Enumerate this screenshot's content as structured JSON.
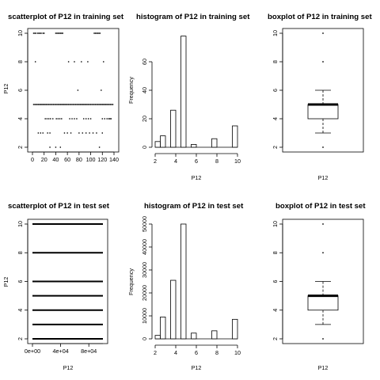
{
  "chart_data": [
    {
      "type": "scatter",
      "title": "scatterplot of P12 in training set",
      "xlabel": "",
      "ylabel": "P12",
      "xlim": [
        0,
        140
      ],
      "ylim": [
        2,
        10
      ],
      "xticks": [
        0,
        20,
        40,
        60,
        80,
        100,
        120,
        140
      ],
      "xtick_labels": [
        "0",
        "20",
        "40",
        "60",
        "80",
        "100",
        "120",
        "140"
      ],
      "yticks": [
        2,
        4,
        6,
        8,
        10
      ],
      "points": [
        [
          2,
          10
        ],
        [
          4,
          10
        ],
        [
          6,
          10
        ],
        [
          9,
          10
        ],
        [
          11,
          10
        ],
        [
          13,
          10
        ],
        [
          15,
          10
        ],
        [
          18,
          10
        ],
        [
          20,
          10
        ],
        [
          40,
          10
        ],
        [
          42,
          10
        ],
        [
          44,
          10
        ],
        [
          46,
          10
        ],
        [
          48,
          10
        ],
        [
          50,
          10
        ],
        [
          52,
          10
        ],
        [
          106,
          10
        ],
        [
          108,
          10
        ],
        [
          110,
          10
        ],
        [
          112,
          10
        ],
        [
          114,
          10
        ],
        [
          116,
          10
        ],
        [
          5,
          8
        ],
        [
          62,
          8
        ],
        [
          72,
          8
        ],
        [
          84,
          8
        ],
        [
          95,
          8
        ],
        [
          122,
          8
        ],
        [
          78,
          6
        ],
        [
          118,
          6
        ],
        [
          2,
          5
        ],
        [
          4,
          5
        ],
        [
          6,
          5
        ],
        [
          8,
          5
        ],
        [
          10,
          5
        ],
        [
          12,
          5
        ],
        [
          14,
          5
        ],
        [
          16,
          5
        ],
        [
          18,
          5
        ],
        [
          20,
          5
        ],
        [
          22,
          5
        ],
        [
          24,
          5
        ],
        [
          26,
          5
        ],
        [
          28,
          5
        ],
        [
          30,
          5
        ],
        [
          32,
          5
        ],
        [
          34,
          5
        ],
        [
          36,
          5
        ],
        [
          38,
          5
        ],
        [
          40,
          5
        ],
        [
          42,
          5
        ],
        [
          44,
          5
        ],
        [
          46,
          5
        ],
        [
          48,
          5
        ],
        [
          50,
          5
        ],
        [
          52,
          5
        ],
        [
          54,
          5
        ],
        [
          56,
          5
        ],
        [
          58,
          5
        ],
        [
          60,
          5
        ],
        [
          62,
          5
        ],
        [
          64,
          5
        ],
        [
          66,
          5
        ],
        [
          68,
          5
        ],
        [
          70,
          5
        ],
        [
          72,
          5
        ],
        [
          74,
          5
        ],
        [
          76,
          5
        ],
        [
          78,
          5
        ],
        [
          80,
          5
        ],
        [
          82,
          5
        ],
        [
          84,
          5
        ],
        [
          86,
          5
        ],
        [
          88,
          5
        ],
        [
          90,
          5
        ],
        [
          92,
          5
        ],
        [
          94,
          5
        ],
        [
          96,
          5
        ],
        [
          98,
          5
        ],
        [
          100,
          5
        ],
        [
          102,
          5
        ],
        [
          104,
          5
        ],
        [
          106,
          5
        ],
        [
          108,
          5
        ],
        [
          110,
          5
        ],
        [
          112,
          5
        ],
        [
          114,
          5
        ],
        [
          116,
          5
        ],
        [
          118,
          5
        ],
        [
          120,
          5
        ],
        [
          122,
          5
        ],
        [
          124,
          5
        ],
        [
          126,
          5
        ],
        [
          128,
          5
        ],
        [
          130,
          5
        ],
        [
          132,
          5
        ],
        [
          134,
          5
        ],
        [
          136,
          5
        ],
        [
          138,
          5
        ],
        [
          22,
          4
        ],
        [
          25,
          4
        ],
        [
          28,
          4
        ],
        [
          31,
          4
        ],
        [
          35,
          4
        ],
        [
          41,
          4
        ],
        [
          44,
          4
        ],
        [
          47,
          4
        ],
        [
          50,
          4
        ],
        [
          64,
          4
        ],
        [
          68,
          4
        ],
        [
          72,
          4
        ],
        [
          76,
          4
        ],
        [
          88,
          4
        ],
        [
          92,
          4
        ],
        [
          96,
          4
        ],
        [
          100,
          4
        ],
        [
          120,
          4
        ],
        [
          124,
          4
        ],
        [
          128,
          4
        ],
        [
          131,
          4
        ],
        [
          133,
          4
        ],
        [
          135,
          4
        ],
        [
          10,
          3
        ],
        [
          14,
          3
        ],
        [
          18,
          3
        ],
        [
          26,
          3
        ],
        [
          30,
          3
        ],
        [
          55,
          3
        ],
        [
          60,
          3
        ],
        [
          66,
          3
        ],
        [
          80,
          3
        ],
        [
          86,
          3
        ],
        [
          92,
          3
        ],
        [
          98,
          3
        ],
        [
          104,
          3
        ],
        [
          110,
          3
        ],
        [
          120,
          3
        ],
        [
          30,
          2
        ],
        [
          40,
          2
        ],
        [
          48,
          2
        ],
        [
          115,
          2
        ]
      ]
    },
    {
      "type": "bar",
      "title": "histogram of P12 in training set",
      "xlabel": "P12",
      "ylabel": "Frequency",
      "xlim": [
        2,
        10
      ],
      "ylim": [
        0,
        80
      ],
      "xticks": [
        2,
        4,
        6,
        8,
        10
      ],
      "yticks": [
        0,
        20,
        40,
        60
      ],
      "bins": [
        [
          2,
          2.5
        ],
        [
          2.5,
          3
        ],
        [
          3,
          3.5
        ],
        [
          3.5,
          4
        ],
        [
          4,
          4.5
        ],
        [
          4.5,
          5
        ],
        [
          5,
          5.5
        ],
        [
          5.5,
          6
        ],
        [
          6,
          6.5
        ],
        [
          6.5,
          7
        ],
        [
          7,
          7.5
        ],
        [
          7.5,
          8
        ],
        [
          8,
          8.5
        ],
        [
          8.5,
          9
        ],
        [
          9,
          9.5
        ],
        [
          9.5,
          10
        ]
      ],
      "values": [
        4,
        8,
        0,
        26,
        0,
        78,
        0,
        2,
        0,
        0,
        0,
        6,
        0,
        0,
        0,
        15
      ]
    },
    {
      "type": "box",
      "title": "boxplot of P12 in training set",
      "xlabel": "P12",
      "ylabel": "",
      "ylim": [
        2,
        10
      ],
      "yticks": [
        2,
        4,
        6,
        8,
        10
      ],
      "lower_whisker": 3,
      "q1": 4,
      "median": 5,
      "q3": 5,
      "upper_whisker": 6,
      "outliers": [
        2,
        8,
        10
      ]
    },
    {
      "type": "scatter",
      "title": "scatterplot of P12 in test set",
      "xlabel": "P12",
      "ylabel": "P12",
      "xlim": [
        0,
        100000
      ],
      "ylim": [
        2,
        10
      ],
      "xticks": [
        0,
        40000,
        80000
      ],
      "xtick_labels": [
        "0e+00",
        "4e+04",
        "8e+04"
      ],
      "yticks": [
        2,
        4,
        6,
        8,
        10
      ],
      "levels": [
        2,
        3,
        4,
        5,
        6,
        8,
        10
      ]
    },
    {
      "type": "bar",
      "title": "histogram of P12 in test set",
      "xlabel": "P12",
      "ylabel": "Frequency",
      "xlim": [
        2,
        10
      ],
      "ylim": [
        0,
        50000
      ],
      "xticks": [
        2,
        4,
        6,
        8,
        10
      ],
      "yticks": [
        0,
        10000,
        20000,
        30000,
        40000,
        50000
      ],
      "bins": [
        [
          2,
          2.5
        ],
        [
          2.5,
          3
        ],
        [
          3,
          3.5
        ],
        [
          3.5,
          4
        ],
        [
          4,
          4.5
        ],
        [
          4.5,
          5
        ],
        [
          5,
          5.5
        ],
        [
          5.5,
          6
        ],
        [
          6,
          6.5
        ],
        [
          6.5,
          7
        ],
        [
          7,
          7.5
        ],
        [
          7.5,
          8
        ],
        [
          8,
          8.5
        ],
        [
          8.5,
          9
        ],
        [
          9,
          9.5
        ],
        [
          9.5,
          10
        ]
      ],
      "values": [
        1500,
        9500,
        0,
        25500,
        0,
        50000,
        0,
        2500,
        0,
        0,
        0,
        3500,
        0,
        0,
        0,
        8500
      ]
    },
    {
      "type": "box",
      "title": "boxplot of P12 in test set",
      "xlabel": "P12",
      "ylabel": "",
      "ylim": [
        2,
        10
      ],
      "yticks": [
        2,
        4,
        6,
        8,
        10
      ],
      "lower_whisker": 3,
      "q1": 4,
      "median": 5,
      "q3": 5,
      "upper_whisker": 6,
      "outliers": [
        2,
        8,
        10
      ]
    }
  ]
}
